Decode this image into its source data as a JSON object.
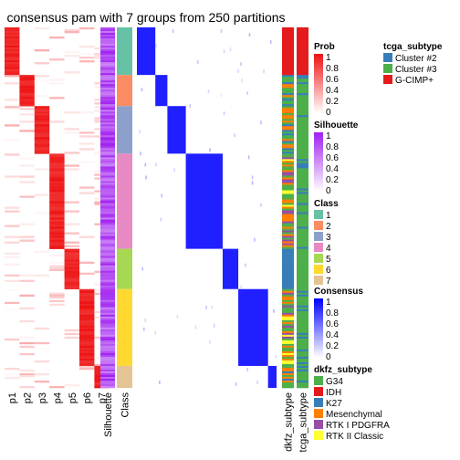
{
  "chart_data": {
    "type": "heatmap",
    "title": "consensus pam with 7 groups from 250 partitions",
    "row_groups": [
      {
        "class": 1,
        "rows": 26
      },
      {
        "class": 2,
        "rows": 17
      },
      {
        "class": 3,
        "rows": 26
      },
      {
        "class": 4,
        "rows": 52
      },
      {
        "class": 5,
        "rows": 22
      },
      {
        "class": 6,
        "rows": 42
      },
      {
        "class": 7,
        "rows": 12
      }
    ],
    "prob_columns": [
      "p1",
      "p2",
      "p3",
      "p4",
      "p5",
      "p6",
      "p7"
    ],
    "annotation_columns": [
      "Silhouette",
      "Class"
    ],
    "side_annotations": [
      "dkfz_subtype",
      "tcga_subtype"
    ],
    "legends": {
      "prob": {
        "title": "Prob",
        "ticks": [
          "1",
          "0.8",
          "0.6",
          "0.4",
          "0.2",
          "0"
        ],
        "color_low": "#ffffff",
        "color_high": "#ee1111"
      },
      "silhouette": {
        "title": "Silhouette",
        "ticks": [
          "1",
          "0.8",
          "0.6",
          "0.4",
          "0.2",
          "0"
        ],
        "color_low": "#ffffff",
        "color_high": "#a020f0"
      },
      "class": {
        "title": "Class",
        "items": [
          {
            "label": "1",
            "color": "#66c2a5"
          },
          {
            "label": "2",
            "color": "#fc8d62"
          },
          {
            "label": "3",
            "color": "#8da0cb"
          },
          {
            "label": "4",
            "color": "#e78ac3"
          },
          {
            "label": "5",
            "color": "#a6d854"
          },
          {
            "label": "6",
            "color": "#ffd92f"
          },
          {
            "label": "7",
            "color": "#e5c494"
          }
        ]
      },
      "consensus": {
        "title": "Consensus",
        "ticks": [
          "1",
          "0.8",
          "0.6",
          "0.4",
          "0.2",
          "0"
        ],
        "color_low": "#ffffff",
        "color_high": "#0000ff"
      },
      "tcga_subtype": {
        "title": "tcga_subtype",
        "items": [
          {
            "label": "Cluster #2",
            "color": "#377eb8"
          },
          {
            "label": "Cluster #3",
            "color": "#4daf4a"
          },
          {
            "label": "G-CIMP+",
            "color": "#e41a1c"
          }
        ]
      },
      "dkfz_subtype": {
        "title": "dkfz_subtype",
        "items": [
          {
            "label": "G34",
            "color": "#4daf4a"
          },
          {
            "label": "IDH",
            "color": "#e41a1c"
          },
          {
            "label": "K27",
            "color": "#377eb8"
          },
          {
            "label": "Mesenchymal",
            "color": "#ff7f00"
          },
          {
            "label": "RTK I PDGFRA",
            "color": "#984ea3"
          },
          {
            "label": "RTK II Classic",
            "color": "#ffff33"
          }
        ]
      }
    }
  }
}
